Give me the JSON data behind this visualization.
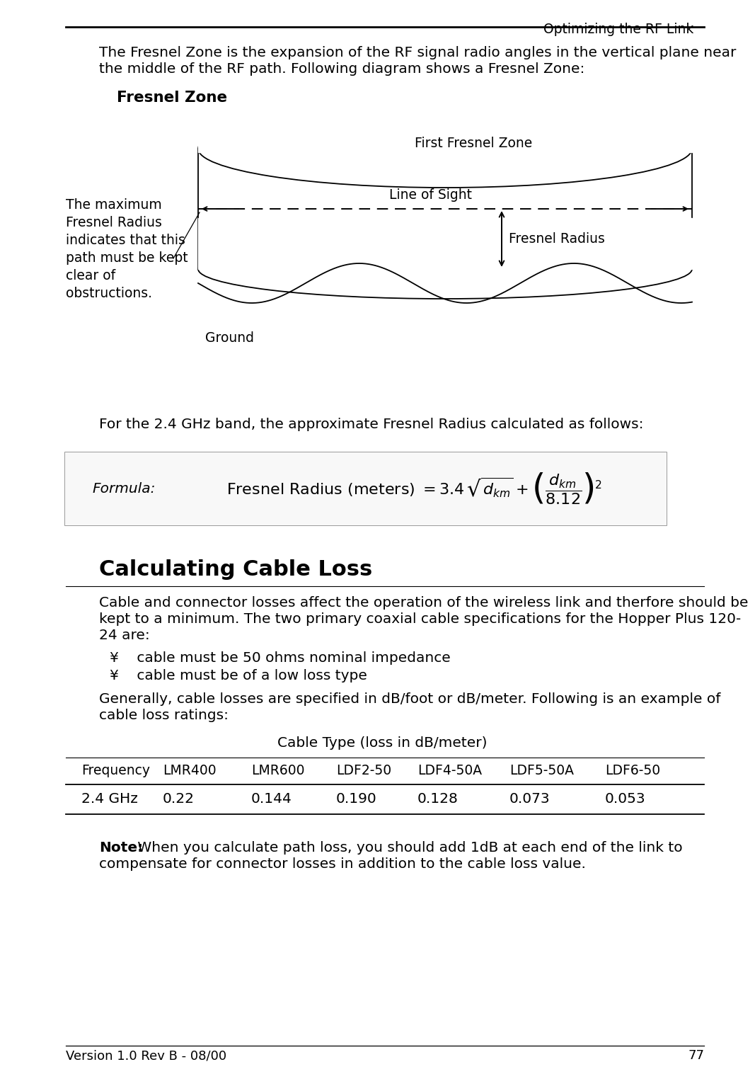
{
  "title_header": "Optimizing the RF Link",
  "version_footer": "Version 1.0 Rev B - 08/00",
  "page_number": "77",
  "body_text_1a": "The Fresnel Zone is the expansion of the RF signal radio angles in the vertical plane near",
  "body_text_1b": "the middle of the RF path. Following diagram shows a Fresnel Zone:",
  "diagram_title": "Fresnel Zone",
  "diagram_label_first_fresnel": "First Fresnel Zone",
  "diagram_label_los": "Line of Sight",
  "diagram_label_fresnel_radius": "Fresnel Radius",
  "diagram_label_ground": "Ground",
  "diagram_annotation": "The maximum\nFresnel Radius\nindicates that this\npath must be kept\nclear of\nobstructions.",
  "freq_section_text": "For the 2.4 GHz band, the approximate Fresnel Radius calculated as follows:",
  "formula_label": "Formula:",
  "section_title": "Calculating Cable Loss",
  "body_text_2a": "Cable and connector losses affect the operation of the wireless link and therfore should be",
  "body_text_2b": "kept to a minimum. The two primary coaxial cable specifications for the Hopper Plus 120-",
  "body_text_2c": "24 are:",
  "bullet1": "¥    cable must be 50 ohms nominal impedance",
  "bullet2": "¥    cable must be of a low loss type",
  "body_text_3a": "Generally, cable losses are specified in dB/foot or dB/meter. Following is an example of",
  "body_text_3b": "cable loss ratings:",
  "table_header_main": "Cable Type (loss in dB/meter)",
  "table_col_headers": [
    "Frequency",
    "LMR400",
    "LMR600",
    "LDF2-50",
    "LDF4-50A",
    "LDF5-50A",
    "LDF6-50"
  ],
  "table_row": [
    "2.4 GHz",
    "0.22",
    "0.144",
    "0.190",
    "0.128",
    "0.073",
    "0.053"
  ],
  "note_bold": "Note:",
  "note_text": " When you calculate path loss, you should add 1dB at each end of the link to",
  "note_text2": "compensate for connector losses in addition to the cable loss value.",
  "bg_color": "#ffffff"
}
